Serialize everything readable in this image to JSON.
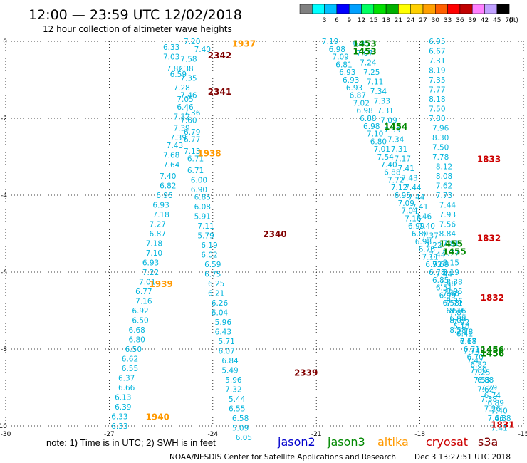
{
  "header": {
    "title": "12:00 — 23:59 UTC 12/02/2018",
    "subtitle": "12 hour collection of altimeter wave heights"
  },
  "colorbar": {
    "unit_label": "(ft)",
    "swatches": [
      {
        "value": "",
        "color": "#808080"
      },
      {
        "value": "3",
        "color": "#00ffff"
      },
      {
        "value": "6",
        "color": "#00bfff"
      },
      {
        "value": "9",
        "color": "#0000ff"
      },
      {
        "value": "12",
        "color": "#00a0ff"
      },
      {
        "value": "15",
        "color": "#00ff60"
      },
      {
        "value": "18",
        "color": "#00e000"
      },
      {
        "value": "21",
        "color": "#00b000"
      },
      {
        "value": "24",
        "color": "#ffff00"
      },
      {
        "value": "27",
        "color": "#ffd000"
      },
      {
        "value": "30",
        "color": "#ffa000"
      },
      {
        "value": "33",
        "color": "#ff6000"
      },
      {
        "value": "36",
        "color": "#ff0000"
      },
      {
        "value": "39",
        "color": "#c00000"
      },
      {
        "value": "42",
        "color": "#ff80ff"
      },
      {
        "value": "45",
        "color": "#c0a0ff"
      },
      {
        "value": "70",
        "color": "#000000"
      }
    ]
  },
  "footer": {
    "note": "note:  1) Time is in UTC; 2) SWH is in feet",
    "credit": "NOAA/NESDIS Center for Satellite Applications and Research",
    "timestamp": "Dec  3 13:27:51 UTC 2018",
    "legend": [
      {
        "label": "jason2",
        "color": "#0000cc"
      },
      {
        "label": "jason3",
        "color": "#008800"
      },
      {
        "label": "altika",
        "color": "#ff9900"
      },
      {
        "label": "cryosat",
        "color": "#cc0000"
      },
      {
        "label": "s3a",
        "color": "#800000"
      }
    ]
  },
  "chart_data": {
    "type": "scatter",
    "xlim": [
      -30,
      -15
    ],
    "ylim": [
      -10,
      0
    ],
    "xticks": [
      -30,
      -27,
      -24,
      -21,
      -18,
      -15
    ],
    "yticks": [
      0,
      -2,
      -4,
      -6,
      -8,
      -10
    ],
    "grid": true,
    "colors": {
      "swh_label": "#00b4dc",
      "s3a": "#800000",
      "altika": "#ff9900",
      "jason3": "#008800",
      "cryosat": "#cc0000",
      "jason2": "#0000cc"
    },
    "swh_points": [
      {
        "x": -24.6,
        "y": 0.0,
        "v": "7.20"
      },
      {
        "x": -25.2,
        "y": -0.15,
        "v": "6.33"
      },
      {
        "x": -24.3,
        "y": -0.2,
        "v": "7.40"
      },
      {
        "x": -25.2,
        "y": -0.4,
        "v": "7.03"
      },
      {
        "x": -24.7,
        "y": -0.45,
        "v": "7.58"
      },
      {
        "x": -25.1,
        "y": -0.7,
        "v": "7.82"
      },
      {
        "x": -24.8,
        "y": -0.7,
        "v": "7.38"
      },
      {
        "x": -25.0,
        "y": -0.85,
        "v": "6.59"
      },
      {
        "x": -24.7,
        "y": -0.95,
        "v": "7.35"
      },
      {
        "x": -24.9,
        "y": -1.2,
        "v": "7.28"
      },
      {
        "x": -24.7,
        "y": -1.4,
        "v": "7.46"
      },
      {
        "x": -24.8,
        "y": -1.5,
        "v": "7.05"
      },
      {
        "x": -24.8,
        "y": -1.7,
        "v": "6.46"
      },
      {
        "x": -24.6,
        "y": -1.85,
        "v": "7.36"
      },
      {
        "x": -24.9,
        "y": -1.95,
        "v": "7.32"
      },
      {
        "x": -24.7,
        "y": -2.05,
        "v": "7.60"
      },
      {
        "x": -24.9,
        "y": -2.25,
        "v": "7.39"
      },
      {
        "x": -24.6,
        "y": -2.35,
        "v": "6.79"
      },
      {
        "x": -25.0,
        "y": -2.5,
        "v": "7.39"
      },
      {
        "x": -24.6,
        "y": -2.55,
        "v": "6.77"
      },
      {
        "x": -25.1,
        "y": -2.7,
        "v": "7.43"
      },
      {
        "x": -24.6,
        "y": -2.85,
        "v": "7.13"
      },
      {
        "x": -25.2,
        "y": -2.95,
        "v": "7.68"
      },
      {
        "x": -24.5,
        "y": -3.05,
        "v": "6.71"
      },
      {
        "x": -25.2,
        "y": -3.2,
        "v": "7.64"
      },
      {
        "x": -24.5,
        "y": -3.35,
        "v": "6.71"
      },
      {
        "x": -25.3,
        "y": -3.5,
        "v": "7.40"
      },
      {
        "x": -24.4,
        "y": -3.6,
        "v": "6.00"
      },
      {
        "x": -25.3,
        "y": -3.75,
        "v": "6.82"
      },
      {
        "x": -24.4,
        "y": -3.85,
        "v": "6.90"
      },
      {
        "x": -25.4,
        "y": -4.0,
        "v": "6.96"
      },
      {
        "x": -24.3,
        "y": -4.05,
        "v": "6.85"
      },
      {
        "x": -25.5,
        "y": -4.25,
        "v": "6.93"
      },
      {
        "x": -24.3,
        "y": -4.3,
        "v": "6.08"
      },
      {
        "x": -25.5,
        "y": -4.5,
        "v": "7.18"
      },
      {
        "x": -24.3,
        "y": -4.55,
        "v": "5.91"
      },
      {
        "x": -25.6,
        "y": -4.75,
        "v": "7.27"
      },
      {
        "x": -24.2,
        "y": -4.8,
        "v": "7.11"
      },
      {
        "x": -25.6,
        "y": -5.0,
        "v": "6.87"
      },
      {
        "x": -24.2,
        "y": -5.05,
        "v": "5.79"
      },
      {
        "x": -25.7,
        "y": -5.25,
        "v": "7.18"
      },
      {
        "x": -24.1,
        "y": -5.3,
        "v": "6.19"
      },
      {
        "x": -25.7,
        "y": -5.5,
        "v": "7.10"
      },
      {
        "x": -24.1,
        "y": -5.55,
        "v": "6.02"
      },
      {
        "x": -25.8,
        "y": -5.75,
        "v": "6.93"
      },
      {
        "x": -24.0,
        "y": -5.8,
        "v": "6.59"
      },
      {
        "x": -25.8,
        "y": -6.0,
        "v": "7.22"
      },
      {
        "x": -24.0,
        "y": -6.05,
        "v": "6.75"
      },
      {
        "x": -25.9,
        "y": -6.25,
        "v": "7.01"
      },
      {
        "x": -23.9,
        "y": -6.3,
        "v": "6.25"
      },
      {
        "x": -26.0,
        "y": -6.5,
        "v": "6.77"
      },
      {
        "x": -23.9,
        "y": -6.55,
        "v": "6.21"
      },
      {
        "x": -26.0,
        "y": -6.75,
        "v": "7.16"
      },
      {
        "x": -23.8,
        "y": -6.8,
        "v": "6.26"
      },
      {
        "x": -26.1,
        "y": -7.0,
        "v": "6.92"
      },
      {
        "x": -23.8,
        "y": -7.05,
        "v": "6.04"
      },
      {
        "x": -26.1,
        "y": -7.25,
        "v": "6.50"
      },
      {
        "x": -23.7,
        "y": -7.3,
        "v": "5.96"
      },
      {
        "x": -26.2,
        "y": -7.5,
        "v": "6.68"
      },
      {
        "x": -23.7,
        "y": -7.55,
        "v": "6.43"
      },
      {
        "x": -26.2,
        "y": -7.75,
        "v": "6.80"
      },
      {
        "x": -23.6,
        "y": -7.8,
        "v": "5.71"
      },
      {
        "x": -26.3,
        "y": -8.0,
        "v": "6.50"
      },
      {
        "x": -23.6,
        "y": -8.05,
        "v": "6.07"
      },
      {
        "x": -26.4,
        "y": -8.25,
        "v": "6.62"
      },
      {
        "x": -23.5,
        "y": -8.3,
        "v": "6.84"
      },
      {
        "x": -26.4,
        "y": -8.5,
        "v": "6.55"
      },
      {
        "x": -23.5,
        "y": -8.55,
        "v": "5.49"
      },
      {
        "x": -26.5,
        "y": -8.75,
        "v": "6.37"
      },
      {
        "x": -23.4,
        "y": -8.8,
        "v": "5.96"
      },
      {
        "x": -26.5,
        "y": -9.0,
        "v": "6.66"
      },
      {
        "x": -23.4,
        "y": -9.05,
        "v": "7.32"
      },
      {
        "x": -26.6,
        "y": -9.25,
        "v": "6.13"
      },
      {
        "x": -23.3,
        "y": -9.3,
        "v": "5.44"
      },
      {
        "x": -26.6,
        "y": -9.5,
        "v": "6.39"
      },
      {
        "x": -23.3,
        "y": -9.55,
        "v": "6.55"
      },
      {
        "x": -26.7,
        "y": -9.75,
        "v": "6.33"
      },
      {
        "x": -23.2,
        "y": -9.8,
        "v": "6.58"
      },
      {
        "x": -26.7,
        "y": -10.0,
        "v": "6.33"
      },
      {
        "x": -23.2,
        "y": -10.05,
        "v": "5.09"
      },
      {
        "x": -23.1,
        "y": -10.3,
        "v": "6.05"
      },
      {
        "x": -20.6,
        "y": 0.0,
        "v": "7.19"
      },
      {
        "x": -20.4,
        "y": -0.2,
        "v": "6.98"
      },
      {
        "x": -20.3,
        "y": -0.4,
        "v": "7.09"
      },
      {
        "x": -20.2,
        "y": -0.6,
        "v": "6.81"
      },
      {
        "x": -20.1,
        "y": -0.8,
        "v": "6.93"
      },
      {
        "x": -20.0,
        "y": -1.0,
        "v": "6.93"
      },
      {
        "x": -19.9,
        "y": -1.2,
        "v": "6.93"
      },
      {
        "x": -19.8,
        "y": -1.4,
        "v": "6.87"
      },
      {
        "x": -19.7,
        "y": -1.6,
        "v": "7.02"
      },
      {
        "x": -19.6,
        "y": -1.8,
        "v": "6.98"
      },
      {
        "x": -19.5,
        "y": -2.0,
        "v": "6.88"
      },
      {
        "x": -19.4,
        "y": -2.2,
        "v": "6.98"
      },
      {
        "x": -19.3,
        "y": -2.4,
        "v": "7.10"
      },
      {
        "x": -19.2,
        "y": -2.6,
        "v": "6.80"
      },
      {
        "x": -19.1,
        "y": -2.8,
        "v": "7.01"
      },
      {
        "x": -19.0,
        "y": -3.0,
        "v": "7.54"
      },
      {
        "x": -18.9,
        "y": -3.2,
        "v": "7.40"
      },
      {
        "x": -18.8,
        "y": -3.4,
        "v": "6.88"
      },
      {
        "x": -18.7,
        "y": -3.6,
        "v": "7.72"
      },
      {
        "x": -18.6,
        "y": -3.8,
        "v": "7.12"
      },
      {
        "x": -18.5,
        "y": -4.0,
        "v": "6.95"
      },
      {
        "x": -18.4,
        "y": -4.2,
        "v": "7.09"
      },
      {
        "x": -18.3,
        "y": -4.4,
        "v": "7.04"
      },
      {
        "x": -18.2,
        "y": -4.6,
        "v": "7.16"
      },
      {
        "x": -18.1,
        "y": -4.8,
        "v": "6.99"
      },
      {
        "x": -18.0,
        "y": -5.0,
        "v": "6.89"
      },
      {
        "x": -17.9,
        "y": -5.2,
        "v": "6.98"
      },
      {
        "x": -17.8,
        "y": -5.4,
        "v": "6.76"
      },
      {
        "x": -17.7,
        "y": -5.6,
        "v": "7.11"
      },
      {
        "x": -17.6,
        "y": -5.8,
        "v": "6.92"
      },
      {
        "x": -17.5,
        "y": -6.0,
        "v": "6.78"
      },
      {
        "x": -17.4,
        "y": -6.2,
        "v": "6.85"
      },
      {
        "x": -17.3,
        "y": -6.4,
        "v": "6.51"
      },
      {
        "x": -17.2,
        "y": -6.6,
        "v": "6.99"
      },
      {
        "x": -17.1,
        "y": -6.8,
        "v": "6.58"
      },
      {
        "x": -17.0,
        "y": -7.0,
        "v": "6.50"
      },
      {
        "x": -16.9,
        "y": -7.2,
        "v": "6.98"
      },
      {
        "x": -16.8,
        "y": -7.4,
        "v": "6.18"
      },
      {
        "x": -16.7,
        "y": -7.6,
        "v": "6.41"
      },
      {
        "x": -16.6,
        "y": -7.8,
        "v": "6.18"
      },
      {
        "x": -16.5,
        "y": -8.0,
        "v": "6.71"
      },
      {
        "x": -16.4,
        "y": -8.2,
        "v": "6.70"
      },
      {
        "x": -16.3,
        "y": -8.4,
        "v": "6.82"
      },
      {
        "x": -16.2,
        "y": -8.6,
        "v": "7.25"
      },
      {
        "x": -16.1,
        "y": -8.8,
        "v": "6.88"
      },
      {
        "x": -16.0,
        "y": -9.0,
        "v": "7.29"
      },
      {
        "x": -15.9,
        "y": -9.2,
        "v": "6.74"
      },
      {
        "x": -15.8,
        "y": -9.4,
        "v": "6.89"
      },
      {
        "x": -15.7,
        "y": -9.6,
        "v": "7.40"
      },
      {
        "x": -15.6,
        "y": -9.8,
        "v": "6.88"
      },
      {
        "x": -19.7,
        "y": -0.05,
        "v": "6.95"
      },
      {
        "x": -19.6,
        "y": -0.3,
        "v": "7.07"
      },
      {
        "x": -19.5,
        "y": -0.55,
        "v": "7.24"
      },
      {
        "x": -19.4,
        "y": -0.8,
        "v": "7.25"
      },
      {
        "x": -19.3,
        "y": -1.05,
        "v": "7.11"
      },
      {
        "x": -19.2,
        "y": -1.3,
        "v": "7.34"
      },
      {
        "x": -19.1,
        "y": -1.55,
        "v": "7.33"
      },
      {
        "x": -19.0,
        "y": -1.8,
        "v": "7.31"
      },
      {
        "x": -18.9,
        "y": -2.05,
        "v": "7.09"
      },
      {
        "x": -18.8,
        "y": -2.3,
        "v": "7.39"
      },
      {
        "x": -18.7,
        "y": -2.55,
        "v": "7.34"
      },
      {
        "x": -18.6,
        "y": -2.8,
        "v": "7.31"
      },
      {
        "x": -18.5,
        "y": -3.05,
        "v": "7.17"
      },
      {
        "x": -18.4,
        "y": -3.3,
        "v": "7.41"
      },
      {
        "x": -18.3,
        "y": -3.55,
        "v": "7.43"
      },
      {
        "x": -18.2,
        "y": -3.8,
        "v": "7.44"
      },
      {
        "x": -18.1,
        "y": -4.05,
        "v": "7.44"
      },
      {
        "x": -18.0,
        "y": -4.3,
        "v": "7.41"
      },
      {
        "x": -17.9,
        "y": -4.55,
        "v": "7.46"
      },
      {
        "x": -17.8,
        "y": -4.8,
        "v": "7.40"
      },
      {
        "x": -17.7,
        "y": -5.05,
        "v": "7.37"
      },
      {
        "x": -17.6,
        "y": -5.3,
        "v": "7.22"
      },
      {
        "x": -17.5,
        "y": -5.55,
        "v": "7.44"
      },
      {
        "x": -17.4,
        "y": -5.8,
        "v": "7.68"
      },
      {
        "x": -17.3,
        "y": -6.05,
        "v": "7.44"
      },
      {
        "x": -17.2,
        "y": -6.3,
        "v": "7.58"
      },
      {
        "x": -17.1,
        "y": -6.55,
        "v": "7.48"
      },
      {
        "x": -17.0,
        "y": -6.8,
        "v": "7.71"
      },
      {
        "x": -16.9,
        "y": -7.05,
        "v": "7.81"
      },
      {
        "x": -16.8,
        "y": -7.3,
        "v": "7.92"
      },
      {
        "x": -16.7,
        "y": -7.55,
        "v": "7.78"
      },
      {
        "x": -16.6,
        "y": -7.8,
        "v": "7.67"
      },
      {
        "x": -16.5,
        "y": -8.05,
        "v": "7.74"
      },
      {
        "x": -16.4,
        "y": -8.3,
        "v": "7.47"
      },
      {
        "x": -16.3,
        "y": -8.55,
        "v": "7.80"
      },
      {
        "x": -16.2,
        "y": -8.8,
        "v": "7.53"
      },
      {
        "x": -16.1,
        "y": -9.05,
        "v": "7.62"
      },
      {
        "x": -16.0,
        "y": -9.3,
        "v": "7.38"
      },
      {
        "x": -15.9,
        "y": -9.55,
        "v": "7.26"
      },
      {
        "x": -15.8,
        "y": -9.8,
        "v": "7.46"
      },
      {
        "x": -15.7,
        "y": -10.05,
        "v": "7.41"
      },
      {
        "x": -17.5,
        "y": 0.0,
        "v": "6.95"
      },
      {
        "x": -17.5,
        "y": -0.25,
        "v": "6.67"
      },
      {
        "x": -17.5,
        "y": -0.5,
        "v": "7.31"
      },
      {
        "x": -17.5,
        "y": -0.75,
        "v": "8.19"
      },
      {
        "x": -17.5,
        "y": -1.0,
        "v": "7.35"
      },
      {
        "x": -17.5,
        "y": -1.25,
        "v": "7.77"
      },
      {
        "x": -17.5,
        "y": -1.5,
        "v": "8.18"
      },
      {
        "x": -17.5,
        "y": -1.75,
        "v": "7.50"
      },
      {
        "x": -17.5,
        "y": -2.0,
        "v": "7.80"
      },
      {
        "x": -17.4,
        "y": -2.25,
        "v": "7.96"
      },
      {
        "x": -17.4,
        "y": -2.5,
        "v": "8.30"
      },
      {
        "x": -17.4,
        "y": -2.75,
        "v": "7.50"
      },
      {
        "x": -17.4,
        "y": -3.0,
        "v": "7.78"
      },
      {
        "x": -17.3,
        "y": -3.25,
        "v": "8.12"
      },
      {
        "x": -17.3,
        "y": -3.5,
        "v": "8.08"
      },
      {
        "x": -17.3,
        "y": -3.75,
        "v": "7.62"
      },
      {
        "x": -17.3,
        "y": -4.0,
        "v": "7.73"
      },
      {
        "x": -17.2,
        "y": -4.25,
        "v": "7.44"
      },
      {
        "x": -17.2,
        "y": -4.5,
        "v": "7.93"
      },
      {
        "x": -17.2,
        "y": -4.75,
        "v": "7.56"
      },
      {
        "x": -17.2,
        "y": -5.0,
        "v": "8.84"
      },
      {
        "x": -17.1,
        "y": -5.25,
        "v": "7.81"
      },
      {
        "x": -17.1,
        "y": -5.5,
        "v": "7.77"
      },
      {
        "x": -17.1,
        "y": -5.75,
        "v": "8.15"
      },
      {
        "x": -17.1,
        "y": -6.0,
        "v": "8.19"
      },
      {
        "x": -17.0,
        "y": -6.25,
        "v": "8.38"
      },
      {
        "x": -17.0,
        "y": -6.5,
        "v": "8.95"
      },
      {
        "x": -17.0,
        "y": -6.75,
        "v": "8.36"
      },
      {
        "x": -16.9,
        "y": -7.0,
        "v": "8.16"
      },
      {
        "x": -16.9,
        "y": -7.25,
        "v": "8.07"
      },
      {
        "x": -16.9,
        "y": -7.5,
        "v": "8.58"
      }
    ],
    "pass_labels": [
      {
        "x": -23.1,
        "y": -0.05,
        "v": "1937",
        "mission": "altika"
      },
      {
        "x": -23.8,
        "y": -0.35,
        "v": "2342",
        "mission": "s3a"
      },
      {
        "x": -23.8,
        "y": -1.3,
        "v": "2341",
        "mission": "s3a"
      },
      {
        "x": -24.1,
        "y": -2.9,
        "v": "1938",
        "mission": "altika"
      },
      {
        "x": -22.2,
        "y": -5.0,
        "v": "2340",
        "mission": "s3a"
      },
      {
        "x": -25.5,
        "y": -6.3,
        "v": "1939",
        "mission": "altika"
      },
      {
        "x": -21.3,
        "y": -8.6,
        "v": "2339",
        "mission": "s3a"
      },
      {
        "x": -25.6,
        "y": -9.75,
        "v": "1940",
        "mission": "altika"
      },
      {
        "x": -19.6,
        "y": -0.05,
        "v": "1453",
        "mission": "jason3"
      },
      {
        "x": -19.6,
        "y": -0.25,
        "v": "1453",
        "mission": "jason3"
      },
      {
        "x": -18.7,
        "y": -2.2,
        "v": "1454",
        "mission": "jason3"
      },
      {
        "x": -17.1,
        "y": -5.25,
        "v": "1455",
        "mission": "jason3"
      },
      {
        "x": -17.0,
        "y": -5.45,
        "v": "1455",
        "mission": "jason3"
      },
      {
        "x": -15.9,
        "y": -8.0,
        "v": "1456",
        "mission": "jason3"
      },
      {
        "x": -15.9,
        "y": -8.1,
        "v": "1456",
        "mission": "jason3"
      },
      {
        "x": -16.0,
        "y": -3.05,
        "v": "1833",
        "mission": "cryosat"
      },
      {
        "x": -16.0,
        "y": -5.1,
        "v": "1832",
        "mission": "cryosat"
      },
      {
        "x": -15.9,
        "y": -6.65,
        "v": "1832",
        "mission": "cryosat"
      },
      {
        "x": -15.6,
        "y": -9.95,
        "v": "1831",
        "mission": "cryosat"
      }
    ]
  }
}
